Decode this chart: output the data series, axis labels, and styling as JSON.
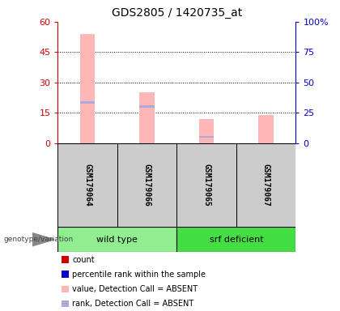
{
  "title": "GDS2805 / 1420735_at",
  "samples": [
    "GSM179064",
    "GSM179066",
    "GSM179065",
    "GSM179067"
  ],
  "groups": [
    "wild type",
    "wild type",
    "srf deficient",
    "srf deficient"
  ],
  "ylim": [
    0,
    60
  ],
  "yticks_left": [
    0,
    15,
    30,
    45,
    60
  ],
  "ytick_labels_right": [
    "0",
    "25",
    "50",
    "75",
    "100%"
  ],
  "left_axis_color": "#cc0000",
  "right_axis_color": "#0000cc",
  "pink_values": [
    54,
    25,
    12,
    14
  ],
  "blue_rank_values": [
    20,
    18,
    3,
    null
  ],
  "pink_color": "#ffb6b6",
  "blue_color": "#aaaadd",
  "gray_bg": "#cccccc",
  "wt_color": "#90EE90",
  "srf_color": "#44dd44",
  "bar_width": 0.25,
  "legend_items": [
    {
      "label": "count",
      "color": "#cc0000"
    },
    {
      "label": "percentile rank within the sample",
      "color": "#0000cc"
    },
    {
      "label": "value, Detection Call = ABSENT",
      "color": "#ffb6b6"
    },
    {
      "label": "rank, Detection Call = ABSENT",
      "color": "#aaaadd"
    }
  ],
  "genotype_label": "genotype/variation",
  "title_fontsize": 10,
  "tick_fontsize": 8,
  "sample_fontsize": 7,
  "group_fontsize": 8,
  "legend_fontsize": 7
}
